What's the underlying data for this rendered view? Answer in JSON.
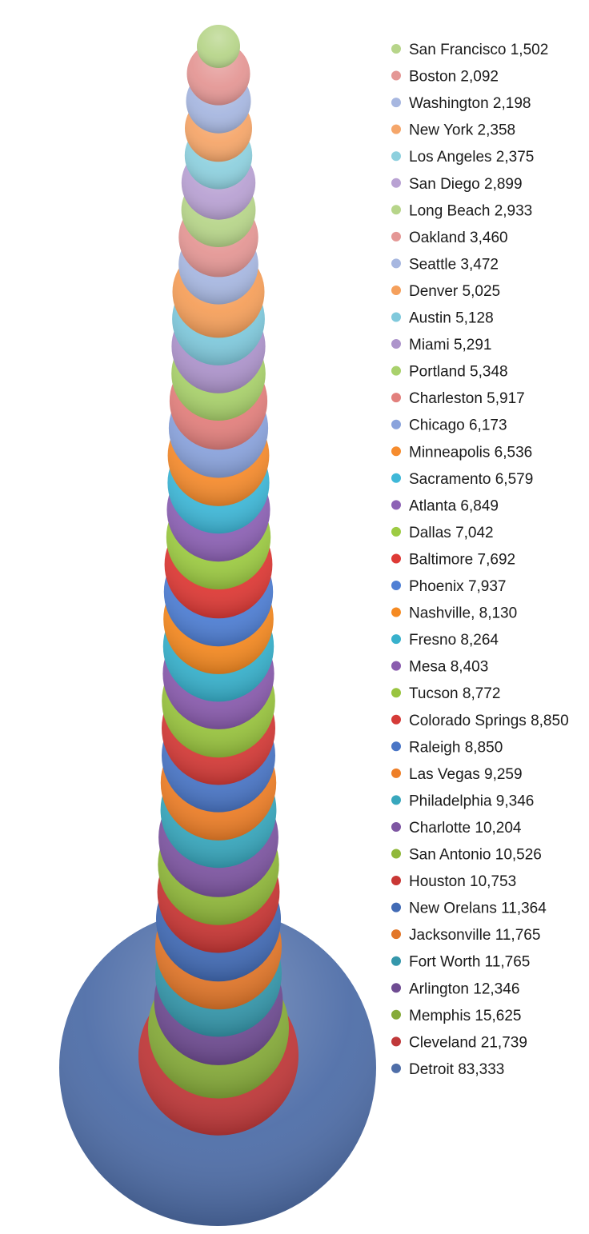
{
  "chart_data": {
    "type": "bubble-stack",
    "title": "",
    "legend_position": "right",
    "legend": [
      {
        "label": "San Francisco 1,502",
        "value": 1502,
        "color": "#b7d58a"
      },
      {
        "label": "Boston 2,092",
        "value": 2092,
        "color": "#e49795"
      },
      {
        "label": "Washington 2,198",
        "value": 2198,
        "color": "#a7b7e0"
      },
      {
        "label": "New York 2,358",
        "value": 2358,
        "color": "#f5a66a"
      },
      {
        "label": "Los Angeles 2,375",
        "value": 2375,
        "color": "#8ed0de"
      },
      {
        "label": "San Diego 2,899",
        "value": 2899,
        "color": "#b9a2d3"
      },
      {
        "label": "Long Beach 2,933",
        "value": 2933,
        "color": "#b7d58a"
      },
      {
        "label": "Oakland 3,460",
        "value": 3460,
        "color": "#e49795"
      },
      {
        "label": "Seattle 3,472",
        "value": 3472,
        "color": "#a7b7e0"
      },
      {
        "label": "Denver 5,025",
        "value": 5025,
        "color": "#f5a05c"
      },
      {
        "label": "Austin 5,128",
        "value": 5128,
        "color": "#80c9dc"
      },
      {
        "label": "Miami 5,291",
        "value": 5291,
        "color": "#ad94cb"
      },
      {
        "label": "Portland 5,348",
        "value": 5348,
        "color": "#a9d16c"
      },
      {
        "label": "Charleston 5,917",
        "value": 5917,
        "color": "#e2807d"
      },
      {
        "label": "Chicago 6,173",
        "value": 6173,
        "color": "#8aa3dc"
      },
      {
        "label": "Minneapolis 6,536",
        "value": 6536,
        "color": "#f68c2e"
      },
      {
        "label": "Sacramento 6,579",
        "value": 6579,
        "color": "#3fb8d8"
      },
      {
        "label": "Atlanta 6,849",
        "value": 6849,
        "color": "#8d62b5"
      },
      {
        "label": "Dallas 7,042",
        "value": 7042,
        "color": "#9dcb43"
      },
      {
        "label": "Baltimore 7,692",
        "value": 7692,
        "color": "#de3a36"
      },
      {
        "label": "Phoenix 7,937",
        "value": 7937,
        "color": "#4f7fd4"
      },
      {
        "label": "Nashville, 8,130",
        "value": 8130,
        "color": "#f58a22"
      },
      {
        "label": "Fresno 8,264",
        "value": 8264,
        "color": "#38b1cc"
      },
      {
        "label": "Mesa 8,403",
        "value": 8403,
        "color": "#8a5cae"
      },
      {
        "label": "Tucson 8,772",
        "value": 8772,
        "color": "#99c43f"
      },
      {
        "label": "Colorado Springs 8,850",
        "value": 8850,
        "color": "#d53b38"
      },
      {
        "label": "Raleigh 8,850",
        "value": 8850,
        "color": "#4a76c6"
      },
      {
        "label": "Las Vegas 9,259",
        "value": 9259,
        "color": "#ee7f28"
      },
      {
        "label": "Philadelphia 9,346",
        "value": 9346,
        "color": "#38a7bd"
      },
      {
        "label": "Charlotte 10,204",
        "value": 10204,
        "color": "#7e56a2"
      },
      {
        "label": "San Antonio 10,526",
        "value": 10526,
        "color": "#90b83b"
      },
      {
        "label": "Houston 10,753",
        "value": 10753,
        "color": "#c93735"
      },
      {
        "label": "New Orelans 11,364",
        "value": 11364,
        "color": "#426bb5"
      },
      {
        "label": "Jacksonville 11,765",
        "value": 11765,
        "color": "#e2772a"
      },
      {
        "label": "Fort Worth 11,765",
        "value": 11765,
        "color": "#3597ab"
      },
      {
        "label": "Arlington 12,346",
        "value": 12346,
        "color": "#6f4c92"
      },
      {
        "label": "Memphis 15,625",
        "value": 15625,
        "color": "#86ab3a"
      },
      {
        "label": "Cleveland 21,739",
        "value": 21739,
        "color": "#c0393a"
      },
      {
        "label": "Detroit 83,333",
        "value": 83333,
        "color": "#4f6ea8"
      }
    ]
  }
}
